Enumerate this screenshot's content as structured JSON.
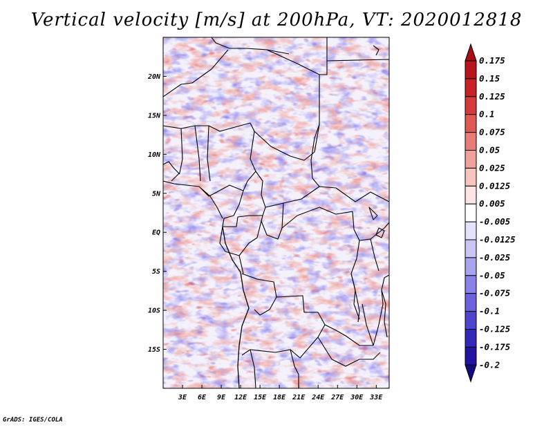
{
  "title": "Vertical velocity [m/s] at 200hPa, VT: 2020012818",
  "credit": "GrADS: IGES/COLA",
  "map": {
    "variable": "Vertical velocity",
    "units": "m/s",
    "level": "200hPa",
    "valid_time": "2020012818",
    "lon_range": [
      0,
      35
    ],
    "lat_range": [
      -20,
      25
    ],
    "lat_ticks": [
      {
        "value": 20,
        "label": "20N"
      },
      {
        "value": 15,
        "label": "15N"
      },
      {
        "value": 10,
        "label": "10N"
      },
      {
        "value": 5,
        "label": "5N"
      },
      {
        "value": 0,
        "label": "EQ"
      },
      {
        "value": -5,
        "label": "5S"
      },
      {
        "value": -10,
        "label": "10S"
      },
      {
        "value": -15,
        "label": "15S"
      }
    ],
    "lon_ticks": [
      {
        "value": 3,
        "label": "3E"
      },
      {
        "value": 6,
        "label": "6E"
      },
      {
        "value": 9,
        "label": "9E"
      },
      {
        "value": 12,
        "label": "12E"
      },
      {
        "value": 15,
        "label": "15E"
      },
      {
        "value": 18,
        "label": "18E"
      },
      {
        "value": 21,
        "label": "21E"
      },
      {
        "value": 24,
        "label": "24E"
      },
      {
        "value": 27,
        "label": "27E"
      },
      {
        "value": 30,
        "label": "30E"
      },
      {
        "value": 33,
        "label": "33E"
      }
    ]
  },
  "colorbar": {
    "levels": [
      "0.175",
      "0.15",
      "0.125",
      "0.1",
      "0.075",
      "0.05",
      "0.025",
      "0.0125",
      "0.005",
      "-0.005",
      "-0.0125",
      "-0.025",
      "-0.05",
      "-0.075",
      "-0.1",
      "-0.125",
      "-0.175",
      "-0.2"
    ],
    "colors": [
      "#a50f15",
      "#b8141c",
      "#c82228",
      "#d73a3a",
      "#e05a55",
      "#e87c76",
      "#f0a19b",
      "#f7c5c0",
      "#fbe4e1",
      "#ffffff",
      "#e4e2fa",
      "#c9c5f5",
      "#aaa4f0",
      "#8983e8",
      "#6b62dc",
      "#4e45cc",
      "#3329b8",
      "#2014a0",
      "#150a80"
    ]
  }
}
